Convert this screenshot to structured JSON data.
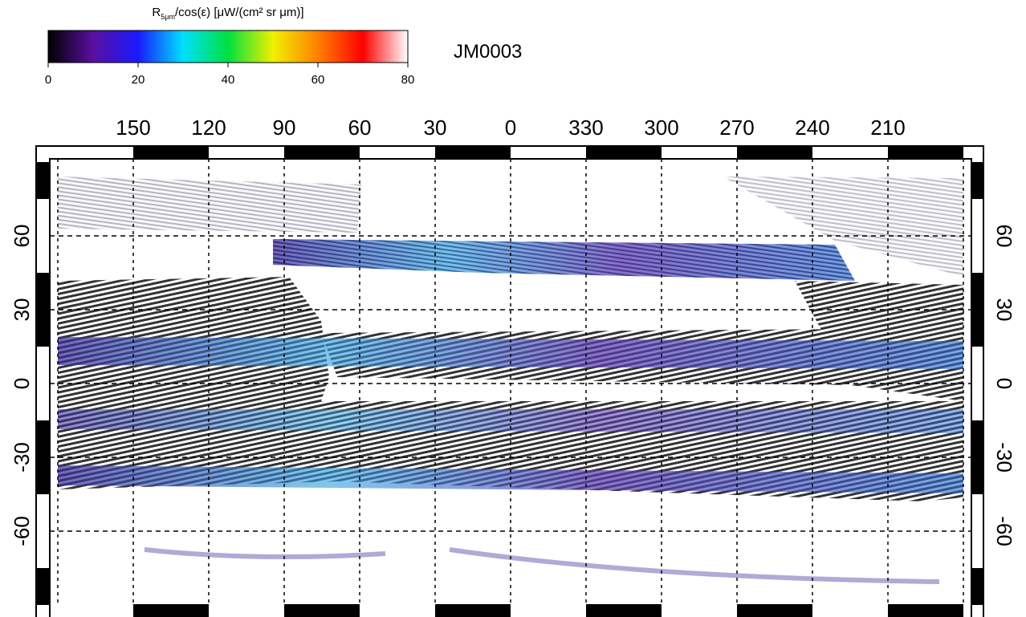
{
  "colorbar": {
    "title": {
      "symbol": "R",
      "subscript": "5μm",
      "rest": "/cos(ε)  [μW/(cm² sr μm)]"
    },
    "ticks": [
      0,
      20,
      40,
      60,
      80
    ],
    "lim": [
      0,
      80
    ],
    "colors": [
      "#000000",
      "#5a0fa0",
      "#1a1aff",
      "#00e0ff",
      "#00e040",
      "#f0f000",
      "#ff8000",
      "#ff0000",
      "#ffffff"
    ]
  },
  "label": "JM0003",
  "map": {
    "xlim": [
      180,
      -180
    ],
    "ylim": [
      -90,
      90
    ],
    "xticks": [
      150,
      120,
      90,
      60,
      30,
      0,
      330,
      300,
      270,
      240,
      210
    ],
    "yticks": [
      60,
      30,
      0,
      -30,
      -60
    ]
  }
}
